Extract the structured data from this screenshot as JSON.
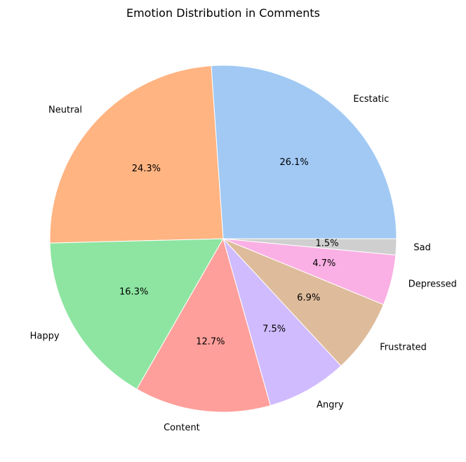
{
  "chart_data": {
    "type": "pie",
    "title": "Emotion Distribution in Comments",
    "start_angle_deg": 0,
    "direction": "counterclockwise",
    "slices": [
      {
        "label": "Ecstatic",
        "value": 26.1,
        "pct_text": "26.1%",
        "color": "#a1c9f4"
      },
      {
        "label": "Neutral",
        "value": 24.3,
        "pct_text": "24.3%",
        "color": "#ffb482"
      },
      {
        "label": "Happy",
        "value": 16.3,
        "pct_text": "16.3%",
        "color": "#8de5a1"
      },
      {
        "label": "Content",
        "value": 12.7,
        "pct_text": "12.7%",
        "color": "#ff9f9b"
      },
      {
        "label": "Angry",
        "value": 7.5,
        "pct_text": "7.5%",
        "color": "#d0bbff"
      },
      {
        "label": "Frustrated",
        "value": 6.9,
        "pct_text": "6.9%",
        "color": "#debb9b"
      },
      {
        "label": "Depressed",
        "value": 4.7,
        "pct_text": "4.7%",
        "color": "#fab0e4"
      },
      {
        "label": "Sad",
        "value": 1.5,
        "pct_text": "1.5%",
        "color": "#cfcfcf"
      }
    ]
  }
}
